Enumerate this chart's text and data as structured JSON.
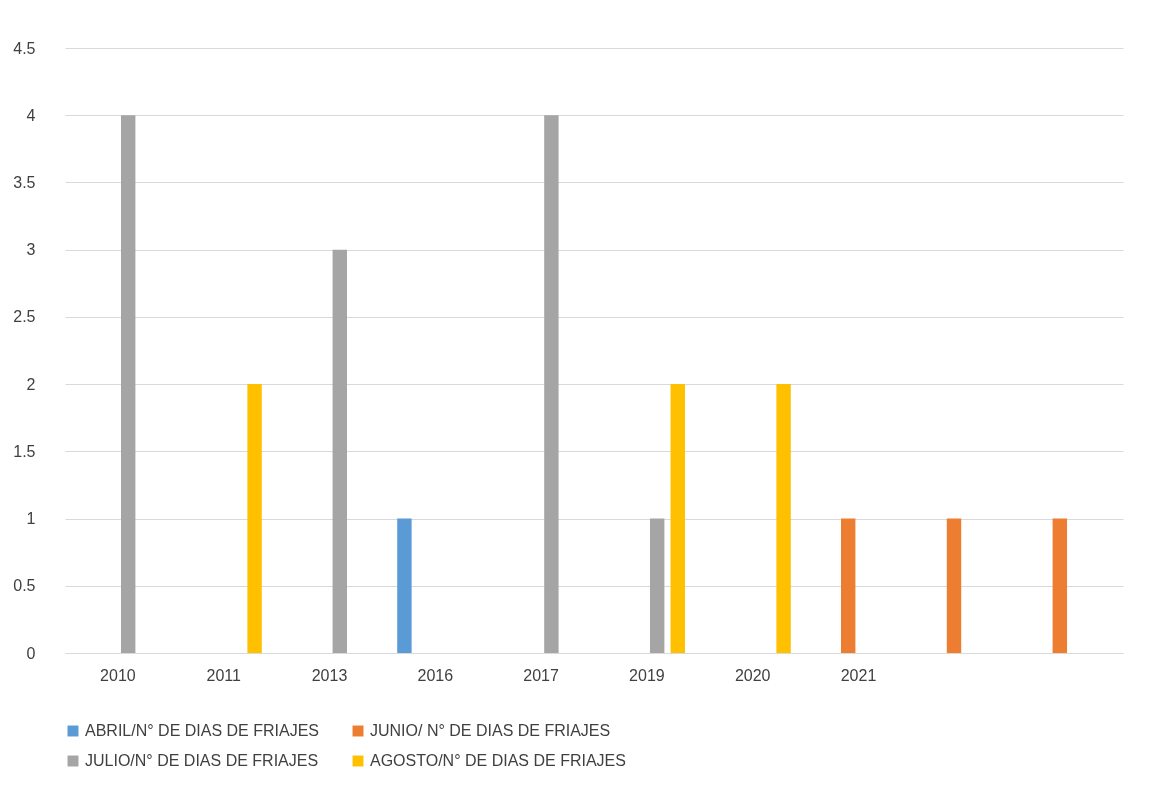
{
  "chart_data": {
    "type": "bar",
    "categories": [
      "2010",
      "2011",
      "2013",
      "2016",
      "2017",
      "2019",
      "2020",
      "2021",
      null,
      null
    ],
    "series": [
      {
        "name": "ABRIL/N° DE DIAS DE FRIAJES",
        "color": "#5b9bd5",
        "values": [
          null,
          null,
          null,
          1,
          null,
          null,
          null,
          null,
          null,
          null
        ]
      },
      {
        "name": "JUNIO/ N° DE DIAS DE FRIAJES",
        "color": "#ed7d31",
        "values": [
          null,
          null,
          null,
          null,
          null,
          null,
          null,
          1,
          1,
          1
        ]
      },
      {
        "name": "JULIO/N° DE DIAS DE FRIAJES",
        "color": "#a5a5a5",
        "values": [
          4,
          null,
          3,
          null,
          4,
          1,
          null,
          null,
          null,
          null
        ]
      },
      {
        "name": "AGOSTO/N° DE DIAS DE FRIAJES",
        "color": "#ffc000",
        "values": [
          null,
          2,
          null,
          null,
          null,
          2,
          2,
          null,
          null,
          null
        ]
      }
    ],
    "ylim": [
      0,
      4.5
    ],
    "yticks": [
      0,
      0.5,
      1,
      1.5,
      2,
      2.5,
      3,
      3.5,
      4,
      4.5
    ],
    "grid": "y",
    "legend": "bottom"
  }
}
